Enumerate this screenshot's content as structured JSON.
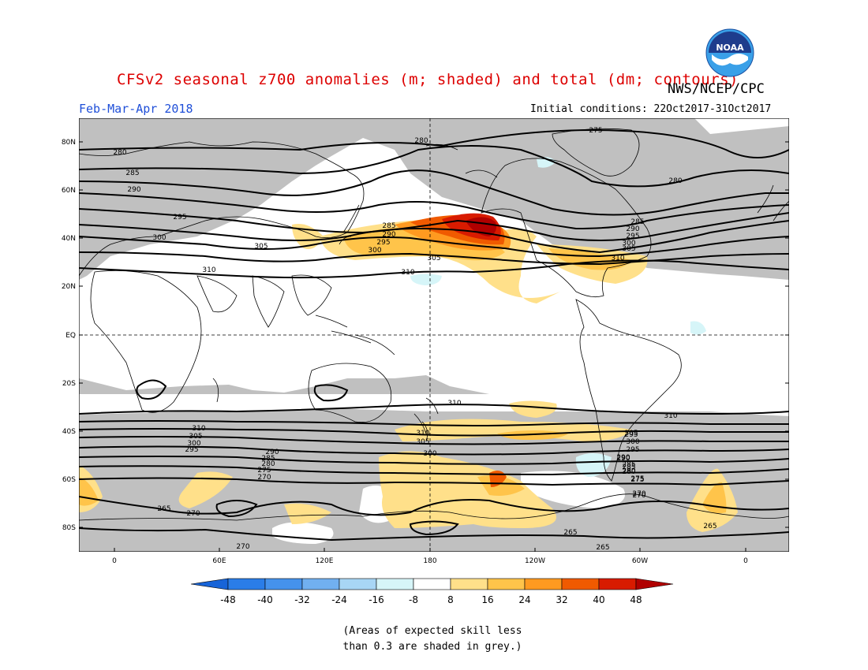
{
  "header": {
    "title": "CFSv2 seasonal z700 anomalies (m; shaded) and total (dm; contours)",
    "agency": "NWS/NCEP/CPC",
    "period": "Feb-Mar-Apr 2018",
    "initial_conditions": "Initial conditions: 22Oct2017-31Oct2017",
    "logo_text": "NOAA"
  },
  "map": {
    "y_labels": [
      "80N",
      "60N",
      "40N",
      "20N",
      "EQ",
      "20S",
      "40S",
      "60S",
      "80S"
    ],
    "x_labels": [
      "0",
      "60E",
      "120E",
      "180",
      "120W",
      "60W",
      "0"
    ],
    "contour_labels": [
      "275",
      "280",
      "280",
      "280",
      "285",
      "290",
      "295",
      "300",
      "305",
      "310",
      "285",
      "290",
      "295",
      "300",
      "305",
      "310",
      "310",
      "285",
      "290",
      "295",
      "300",
      "305",
      "310",
      "310",
      "305",
      "300",
      "295",
      "290",
      "285",
      "280",
      "275",
      "270",
      "265",
      "265",
      "270",
      "270",
      "265",
      "265",
      "310",
      "305",
      "300",
      "295",
      "290",
      "285",
      "280",
      "275",
      "270",
      "310",
      "305",
      "300",
      "295",
      "290",
      "285",
      "280",
      "275",
      "270"
    ],
    "land_color": "#ffffff",
    "skill_mask_color": "#c0c0c0"
  },
  "colorbar": {
    "labels": [
      "-48",
      "-40",
      "-32",
      "-24",
      "-16",
      "-8",
      "8",
      "16",
      "24",
      "32",
      "40",
      "48"
    ],
    "colors": [
      "#1764d8",
      "#2a7de8",
      "#4592ec",
      "#71b0f0",
      "#a8d6f5",
      "#d6f5f8",
      "#ffffff",
      "#ffe08a",
      "#ffc44a",
      "#ff9a20",
      "#f05a00",
      "#d81b00",
      "#b00000"
    ]
  },
  "footnote": {
    "line1": "(Areas of expected skill less",
    "line2": "than 0.3 are shaded in grey.)"
  }
}
